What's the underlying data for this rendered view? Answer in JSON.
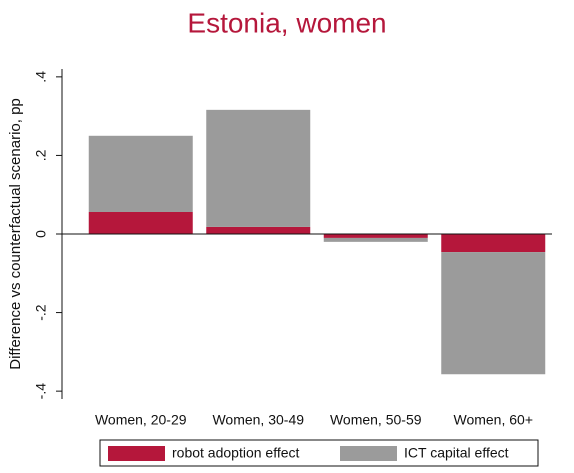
{
  "chart_data": {
    "type": "stacked_bar",
    "title": "Estonia, women",
    "y_label": "Difference vs counterfactual scenario, pp",
    "categories": [
      "Women, 20-29",
      "Women, 30-49",
      "Women, 50-59",
      "Women, 60+"
    ],
    "series": [
      {
        "name": "robot adoption effect",
        "color": "#b5173b",
        "values": [
          0.056,
          0.018,
          -0.01,
          -0.046
        ]
      },
      {
        "name": "ICT capital effect",
        "color": "#9b9b9b",
        "values": [
          0.194,
          0.298,
          -0.01,
          -0.311
        ]
      }
    ],
    "ylim": [
      -0.42,
      0.42
    ],
    "yticks": [
      {
        "value": -0.4,
        "label": "-.4"
      },
      {
        "value": -0.2,
        "label": "-.2"
      },
      0,
      {
        "value": 0.2,
        "label": ".2"
      },
      {
        "value": 0.4,
        "label": ".4"
      }
    ]
  }
}
